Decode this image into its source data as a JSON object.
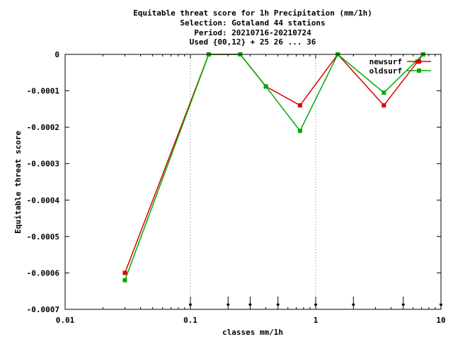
{
  "chart_data": {
    "type": "line",
    "title_lines": [
      "Equitable threat score  for 1h Precipitation (mm/1h)",
      "Selection: Gotaland     44 stations",
      "Period: 20210716-20210724",
      "Used {00,12} + 25 26 ... 36"
    ],
    "xlabel": "classes mm/1h",
    "ylabel": "Equitable threat score",
    "xscale": "log",
    "xlim": [
      0.01,
      10
    ],
    "ylim": [
      -0.0007,
      0
    ],
    "x_ticks": [
      0.01,
      0.1,
      1,
      10
    ],
    "x_tick_labels": [
      "0.01",
      "0.1",
      "1",
      "10"
    ],
    "y_ticks": [
      0,
      -0.0001,
      -0.0002,
      -0.0003,
      -0.0004,
      -0.0005,
      -0.0006,
      -0.0007
    ],
    "y_tick_labels": [
      "0",
      "-0.0001",
      "-0.0002",
      "-0.0003",
      "-0.0004",
      "-0.0005",
      "-0.0006",
      "-0.0007"
    ],
    "threshold_markers": [
      0.1,
      0.2,
      0.3,
      0.5,
      1,
      2,
      5,
      10
    ],
    "grid": "vertical-dotted-at-decades",
    "legend_position": "top-right",
    "series": [
      {
        "name": "newsurf",
        "color": "#dd0000",
        "x": [
          0.03,
          0.14,
          0.25,
          0.4,
          0.75,
          1.5,
          3.5,
          6.5,
          7.2
        ],
        "y": [
          -0.0006,
          0.0,
          0.0,
          -8.8e-05,
          -0.00014,
          0.0,
          -0.00014,
          -2e-05,
          0.0
        ]
      },
      {
        "name": "oldsurf",
        "color": "#00aa00",
        "x": [
          0.03,
          0.14,
          0.25,
          0.4,
          0.75,
          1.5,
          3.5,
          7.2
        ],
        "y": [
          -0.00062,
          0.0,
          0.0,
          -8.8e-05,
          -0.00021,
          0.0,
          -0.000105,
          0.0
        ]
      }
    ]
  }
}
